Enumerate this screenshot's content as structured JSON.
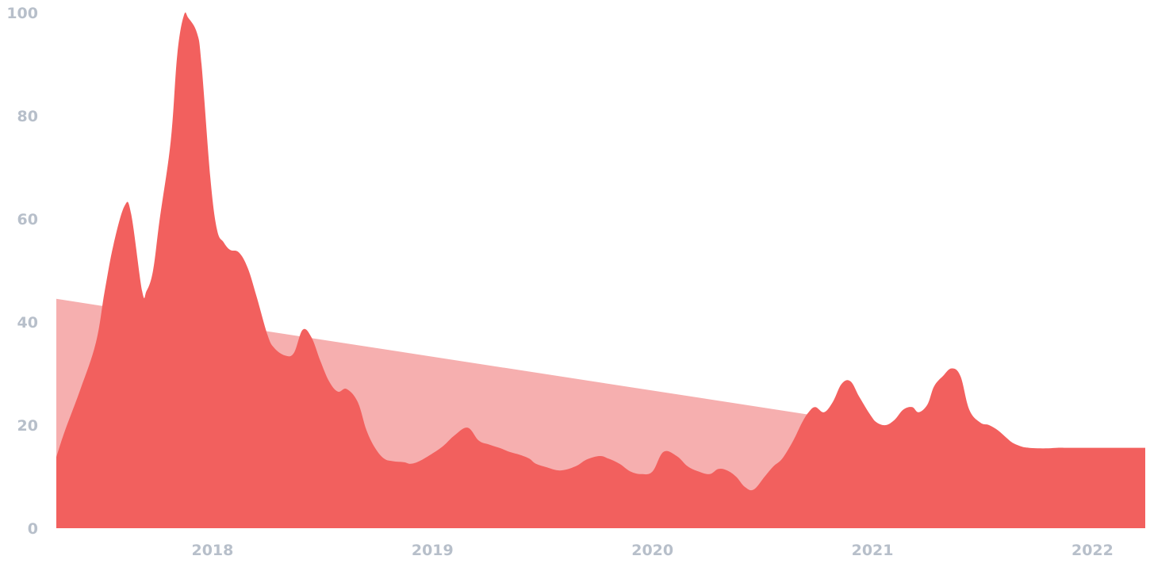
{
  "chart_data": {
    "type": "area",
    "title": "",
    "xlabel": "",
    "ylabel": "",
    "ylim": [
      0,
      100
    ],
    "y_ticks": [
      "0",
      "20",
      "40",
      "60",
      "80",
      "100"
    ],
    "x_ticks": [
      "2018",
      "2019",
      "2020",
      "2021",
      "2022"
    ],
    "x_tick_values": [
      2018.0,
      2019.0,
      2020.0,
      2021.0,
      2022.0
    ],
    "xlim": [
      2017.29,
      2022.24
    ],
    "grid": false,
    "legend": "none",
    "series": [
      {
        "role": "trend",
        "color": "#f6afaf",
        "x": [
          2017.29,
          2022.24
        ],
        "y": [
          44.5,
          12.0
        ]
      },
      {
        "role": "primary",
        "color": "#f2605e",
        "x": [
          2017.29,
          2017.33,
          2017.4,
          2017.47,
          2017.51,
          2017.55,
          2017.6,
          2017.63,
          2017.68,
          2017.7,
          2017.73,
          2017.76,
          2017.81,
          2017.84,
          2017.87,
          2017.89,
          2017.93,
          2017.95,
          2017.99,
          2018.02,
          2018.05,
          2018.08,
          2018.12,
          2018.16,
          2018.2,
          2018.25,
          2018.28,
          2018.33,
          2018.37,
          2018.41,
          2018.45,
          2018.49,
          2018.53,
          2018.57,
          2018.61,
          2018.66,
          2018.7,
          2018.74,
          2018.78,
          2018.82,
          2018.87,
          2018.9,
          2018.94,
          2019.0,
          2019.05,
          2019.1,
          2019.16,
          2019.21,
          2019.26,
          2019.31,
          2019.35,
          2019.4,
          2019.44,
          2019.47,
          2019.52,
          2019.58,
          2019.65,
          2019.7,
          2019.76,
          2019.8,
          2019.85,
          2019.9,
          2019.95,
          2020.0,
          2020.05,
          2020.11,
          2020.16,
          2020.21,
          2020.26,
          2020.3,
          2020.34,
          2020.38,
          2020.42,
          2020.46,
          2020.51,
          2020.55,
          2020.59,
          2020.64,
          2020.68,
          2020.71,
          2020.74,
          2020.78,
          2020.82,
          2020.86,
          2020.9,
          2020.94,
          2020.99,
          2021.02,
          2021.06,
          2021.1,
          2021.14,
          2021.18,
          2021.21,
          2021.25,
          2021.28,
          2021.32,
          2021.36,
          2021.4,
          2021.44,
          2021.49,
          2021.53,
          2021.57,
          2021.61,
          2021.64,
          2021.68,
          2021.71,
          2021.75,
          2021.8,
          2021.84,
          2021.87,
          2021.91,
          2021.95,
          2022.0,
          2022.04,
          2022.08,
          2022.12,
          2022.16,
          2022.2,
          2022.24
        ],
        "y": [
          13.8,
          19.0,
          27.0,
          36.0,
          46.0,
          55.0,
          62.5,
          61.0,
          46.0,
          46.0,
          50.0,
          60.0,
          75.0,
          92.0,
          99.5,
          99.0,
          96.0,
          90.0,
          68.0,
          58.0,
          55.5,
          54.0,
          53.5,
          50.5,
          45.0,
          37.5,
          35.0,
          33.5,
          34.0,
          38.5,
          37.0,
          32.5,
          28.5,
          26.5,
          27.0,
          24.5,
          19.0,
          15.5,
          13.5,
          13.0,
          12.8,
          12.5,
          13.0,
          14.5,
          16.0,
          18.0,
          19.5,
          17.0,
          16.2,
          15.5,
          14.8,
          14.2,
          13.5,
          12.5,
          11.8,
          11.2,
          12.0,
          13.3,
          14.0,
          13.5,
          12.5,
          11.0,
          10.5,
          11.0,
          14.8,
          14.0,
          12.0,
          11.0,
          10.5,
          11.5,
          11.2,
          10.0,
          8.0,
          7.5,
          10.0,
          12.0,
          13.5,
          17.0,
          20.5,
          22.5,
          23.5,
          22.5,
          24.5,
          28.0,
          28.5,
          25.5,
          22.0,
          20.5,
          20.0,
          21.0,
          23.0,
          23.5,
          22.5,
          24.0,
          27.5,
          29.5,
          31.0,
          29.5,
          23.0,
          20.5,
          20.0,
          19.0,
          17.5,
          16.5,
          15.8,
          15.6,
          15.5,
          15.5,
          15.6,
          15.6,
          15.6,
          15.6,
          15.6,
          15.6,
          15.6,
          15.6,
          15.6,
          15.6,
          15.6
        ]
      }
    ]
  }
}
